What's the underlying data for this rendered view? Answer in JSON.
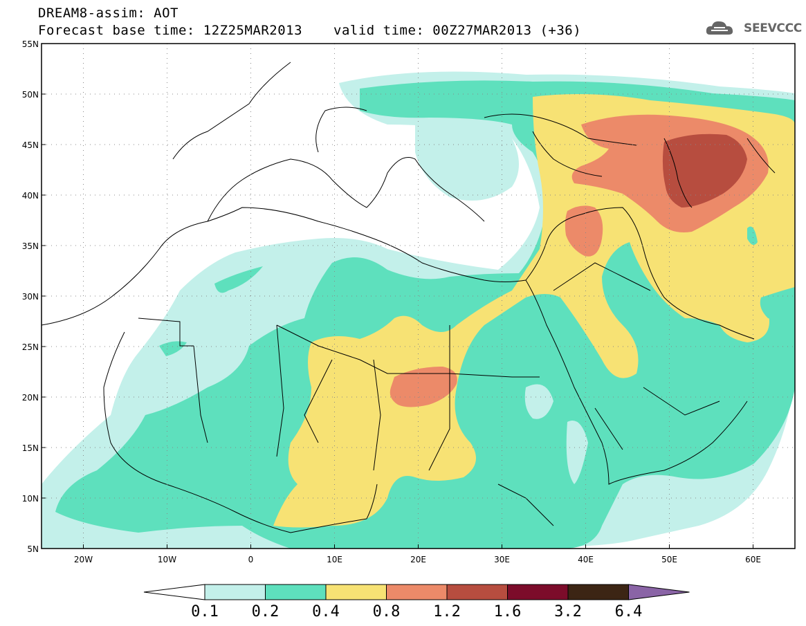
{
  "header": {
    "line1": "DREAM8-assim: AOT",
    "line2": "Forecast base time: 12Z25MAR2013",
    "valid": "valid time: 00Z27MAR2013 (+36)"
  },
  "logo": {
    "text": "SEEVCCC",
    "icon": "cloud-icon"
  },
  "map": {
    "lon_range": [
      -25,
      65
    ],
    "lat_range": [
      5,
      55
    ],
    "lon_ticks": [
      {
        "value": -20,
        "label": "20W"
      },
      {
        "value": -10,
        "label": "10W"
      },
      {
        "value": 0,
        "label": "0"
      },
      {
        "value": 10,
        "label": "10E"
      },
      {
        "value": 20,
        "label": "20E"
      },
      {
        "value": 30,
        "label": "30E"
      },
      {
        "value": 40,
        "label": "40E"
      },
      {
        "value": 50,
        "label": "50E"
      },
      {
        "value": 60,
        "label": "60E"
      }
    ],
    "lat_ticks": [
      {
        "value": 5,
        "label": "5N"
      },
      {
        "value": 10,
        "label": "10N"
      },
      {
        "value": 15,
        "label": "15N"
      },
      {
        "value": 20,
        "label": "20N"
      },
      {
        "value": 25,
        "label": "25N"
      },
      {
        "value": 30,
        "label": "30N"
      },
      {
        "value": 35,
        "label": "35N"
      },
      {
        "value": 40,
        "label": "40N"
      },
      {
        "value": 45,
        "label": "45N"
      },
      {
        "value": 50,
        "label": "50N"
      },
      {
        "value": 55,
        "label": "55N"
      }
    ],
    "grid": "dotted"
  },
  "colorbar": {
    "labels": [
      "0.1",
      "0.2",
      "0.4",
      "0.8",
      "1.2",
      "1.6",
      "3.2",
      "6.4"
    ],
    "colors": [
      "#ffffff",
      "#c3f0ea",
      "#5ee0bd",
      "#f7e274",
      "#ec8a69",
      "#b74d3f",
      "#7c0c2a",
      "#3c2514",
      "#8a64a6"
    ]
  },
  "colors": {
    "aot_01_02": "#c3f0ea",
    "aot_02_04": "#5ee0bd",
    "aot_04_08": "#f7e274",
    "aot_08_12": "#ec8a69",
    "aot_12_16": "#b74d3f"
  }
}
